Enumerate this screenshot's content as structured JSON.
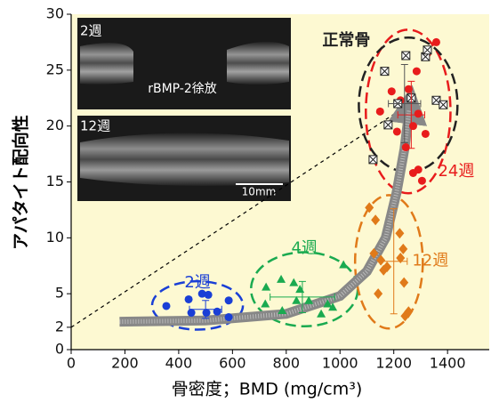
{
  "chart_data": {
    "type": "scatter",
    "x_label": "骨密度；BMD (mg/cm³)",
    "y_label": "アパタイト配向性",
    "xlim": [
      0,
      1555
    ],
    "ylim": [
      0,
      30
    ],
    "xticks": [
      0,
      200,
      400,
      600,
      800,
      1000,
      1200,
      1400
    ],
    "yticks": [
      0,
      2,
      5,
      10,
      15,
      20,
      25,
      30
    ],
    "series": [
      {
        "name": "2週",
        "color": "#1a3fd6",
        "marker": "circle",
        "x": [
          354,
          437,
          487,
          510,
          503,
          543,
          586,
          586,
          447
        ],
        "values": [
          3.9,
          4.5,
          5.0,
          4.9,
          3.3,
          3.4,
          4.4,
          2.9,
          3.3
        ],
        "mean_x": 500,
        "mean_y": 3.6,
        "xerr": 60,
        "yerr": 0.8
      },
      {
        "name": "4週",
        "color": "#1aaa50",
        "marker": "triangle",
        "x": [
          725,
          781,
          828,
          851,
          884,
          838,
          930,
          785,
          954,
          973,
          1013,
          722
        ],
        "values": [
          5.6,
          6.3,
          6.0,
          5.4,
          4.4,
          4.4,
          3.2,
          3.5,
          4.1,
          3.8,
          7.6,
          4.1
        ],
        "mean_x": 860,
        "mean_y": 4.7,
        "xerr": 120,
        "yerr": 1.4
      },
      {
        "name": "12週",
        "color": "#e07a1a",
        "marker": "diamond",
        "x": [
          1109,
          1132,
          1152,
          1162,
          1142,
          1222,
          1235,
          1225,
          1175,
          1238,
          1242,
          1255,
          1126
        ],
        "values": [
          12.7,
          11.6,
          8.0,
          7.1,
          5.0,
          10.4,
          9.0,
          8.2,
          7.4,
          6.0,
          3.0,
          3.4,
          8.6
        ],
        "mean_x": 1200,
        "mean_y": 7.9,
        "xerr": 50,
        "yerr": 4.7
      },
      {
        "name": "24週",
        "color": "#e81c1c",
        "marker": "circle",
        "x": [
          1358,
          1325,
          1285,
          1255,
          1192,
          1149,
          1225,
          1291,
          1212,
          1272,
          1245,
          1318,
          1272,
          1305,
          1291
        ],
        "values": [
          27.5,
          26.5,
          24.9,
          23.3,
          23.1,
          21.3,
          22.3,
          21.1,
          19.5,
          20.0,
          18.1,
          19.3,
          15.8,
          15.1,
          16.1
        ],
        "mean_x": 1265,
        "mean_y": 21,
        "xerr": 50,
        "yerr": 3
      },
      {
        "name": "正常骨",
        "color": "#222222",
        "marker": "square-x",
        "x": [
          1166,
          1245,
          1318,
          1325,
          1265,
          1215,
          1358,
          1384,
          1179,
          1123
        ],
        "values": [
          24.9,
          26.3,
          26.2,
          26.8,
          22.5,
          22.0,
          22.3,
          21.9,
          20.1,
          17.0
        ],
        "mean_x": 1240,
        "mean_y": 22,
        "xerr": 60,
        "yerr": 3.5
      }
    ],
    "trend": {
      "x": [
        180,
        500,
        800,
        1000,
        1100,
        1170,
        1210,
        1240,
        1258
      ],
      "values": [
        2.5,
        2.6,
        3.2,
        4.8,
        7,
        10,
        14,
        18,
        21.5
      ]
    },
    "reference_line": {
      "x": [
        0,
        1260
      ],
      "values": [
        2,
        22
      ]
    },
    "inset": {
      "top_label": "2週",
      "center_label": "rBMP-2徐放",
      "bottom_label": "12週",
      "scale_label": "10mm"
    }
  }
}
